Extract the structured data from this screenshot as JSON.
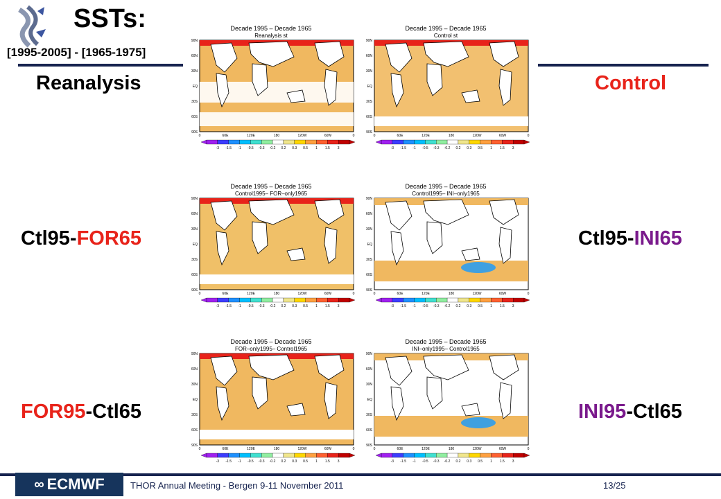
{
  "slide": {
    "title": "SSTs:",
    "subtitle": "[1995-2005] - [1965-1975]"
  },
  "labels": {
    "reanalysis": "Reanalysis",
    "control": "Control",
    "row2_left_a": "Ctl95-",
    "row2_left_b": "FOR65",
    "row2_right_a": "Ctl95-",
    "row2_right_b": "INI65",
    "row3_left_a": "FOR95",
    "row3_left_b": "-Ctl65",
    "row3_right_a": "INI95",
    "row3_right_b": "-Ctl65"
  },
  "colors": {
    "red": "#e8231a",
    "purple": "#7a1a8c",
    "navy": "#16234f"
  },
  "maps": [
    {
      "title1": "Decade 1995 – Decade 1965",
      "title2": "Reanalysis st"
    },
    {
      "title1": "Decade 1995 – Decade 1965",
      "title2": "Control st"
    },
    {
      "title1": "Decade 1995 – Decade 1965",
      "title2": "Control1995– FOR–only1965"
    },
    {
      "title1": "Decade 1995 – Decade 1965",
      "title2": "Control1995– INI–only1965"
    },
    {
      "title1": "Decade 1995 – Decade 1965",
      "title2": "FOR–only1995– Control1965"
    },
    {
      "title1": "Decade 1995 – Decade 1965",
      "title2": "INI–only1995– Control1965"
    }
  ],
  "colorbar_ticks": [
    "-3",
    "-1.5",
    "-1",
    "-0.5",
    "-0.3",
    "-0.2",
    "0.2",
    "0.3",
    "0.5",
    "1",
    "1.5",
    "3"
  ],
  "lat_ticks": [
    "90N",
    "60N",
    "30N",
    "EQ",
    "30S",
    "60S",
    "90S"
  ],
  "lon_ticks": [
    "0",
    "60E",
    "120E",
    "180",
    "120W",
    "60W",
    "0"
  ],
  "footer": {
    "logo_text": "ECMWF",
    "text": "THOR Annual Meeting - Bergen  9-11 November 2011",
    "page": "13/25"
  }
}
